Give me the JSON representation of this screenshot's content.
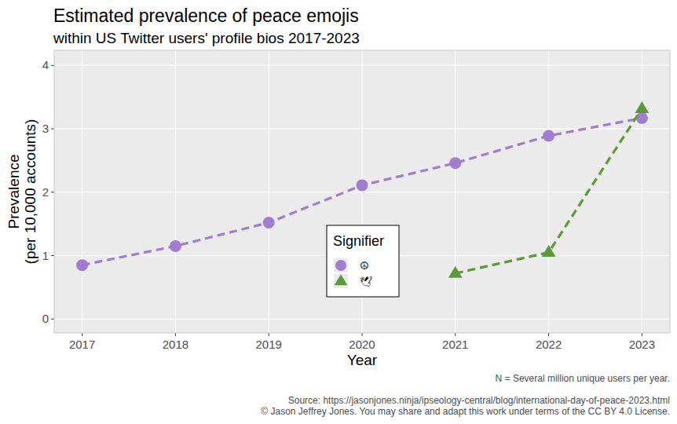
{
  "chart_data": {
    "type": "line",
    "title": "Estimated prevalence of peace emojis",
    "subtitle": "within US Twitter users' profile bios 2017-2023",
    "x_label": "Year",
    "y_label": "Prevalence\n(per 10,000 accounts)",
    "note": "N = Several million unique users per year.",
    "source": "Source: https://jasonjones.ninja/ipseology-central/blog/international-day-of-peace-2023.html",
    "license": "© Jason Jeffrey Jones. You may share and adapt this work under terms of the CC BY 4.0 License.",
    "legend_title": "Signifier",
    "legend": "center",
    "grid": true,
    "x": [
      2017,
      2018,
      2019,
      2020,
      2021,
      2022,
      2023
    ],
    "xlim": [
      2016.7,
      2023.3
    ],
    "xticks": [
      2017,
      2018,
      2019,
      2020,
      2021,
      2022,
      2023
    ],
    "ylim": [
      -0.22,
      4.24
    ],
    "yticks": [
      0,
      1,
      2,
      3,
      4
    ],
    "series": [
      {
        "name": "☮",
        "color": "#a17dcf",
        "marker": "circle",
        "line_style": "dashed",
        "values": [
          0.85,
          1.15,
          1.52,
          2.11,
          2.46,
          2.89,
          3.17
        ]
      },
      {
        "name": "🕊",
        "color": "#5b9a3a",
        "marker": "triangle",
        "line_style": "dashed",
        "values": [
          null,
          null,
          null,
          null,
          0.72,
          1.05,
          3.32
        ]
      }
    ]
  }
}
